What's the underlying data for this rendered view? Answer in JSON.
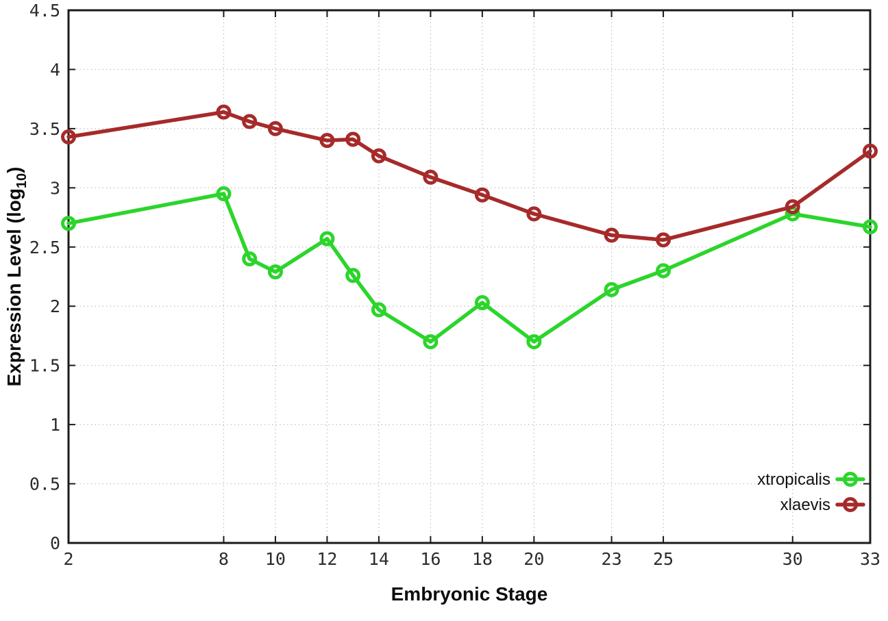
{
  "chart_data": {
    "type": "line",
    "xlabel": "Embryonic Stage",
    "ylabel_prefix": "Expression Level (log",
    "ylabel_sub": "10",
    "ylabel_suffix": ")",
    "x": [
      2,
      8,
      9,
      10,
      12,
      13,
      14,
      16,
      18,
      20,
      23,
      25,
      30,
      33
    ],
    "series": [
      {
        "name": "xtropicalis",
        "color": "#2bd52b",
        "values": [
          2.7,
          2.95,
          2.4,
          2.29,
          2.57,
          2.26,
          1.97,
          1.7,
          2.03,
          1.7,
          2.14,
          2.3,
          2.78,
          2.67
        ]
      },
      {
        "name": "xlaevis",
        "color": "#a62a2a",
        "values": [
          3.43,
          3.64,
          3.56,
          3.5,
          3.4,
          3.41,
          3.27,
          3.09,
          2.94,
          2.78,
          2.6,
          2.56,
          2.84,
          3.31
        ]
      }
    ],
    "xticks": [
      2,
      8,
      10,
      12,
      14,
      16,
      18,
      20,
      23,
      25,
      30,
      33
    ],
    "yticks": [
      0,
      0.5,
      1,
      1.5,
      2,
      2.5,
      3,
      3.5,
      4,
      4.5
    ],
    "xlim": [
      2,
      33
    ],
    "ylim": [
      0,
      4.5
    ],
    "grid": true,
    "legend_position": "bottom-right"
  },
  "style": {
    "background": "#ffffff",
    "grid_color": "#bdbdbd",
    "axis_color": "#1a1a1a",
    "tick_label_color": "#2b2b2b"
  }
}
